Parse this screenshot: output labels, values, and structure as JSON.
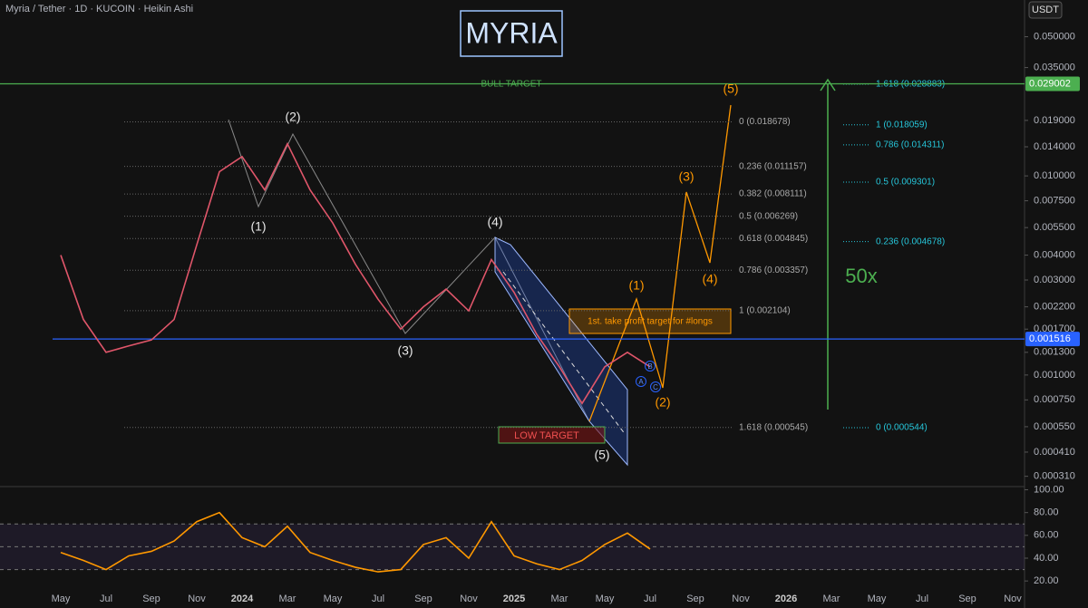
{
  "chart_data": [
    {
      "type": "line",
      "log_scale": true,
      "title": "MYRIA",
      "subtitle": "Myria / Tether · 1D · KUCOIN · Heikin Ashi",
      "currency": "USDT",
      "categories": [
        "May",
        null,
        "Jul",
        null,
        "Sep",
        null,
        "Nov",
        null,
        "2024",
        null,
        "Mar",
        null,
        "May",
        null,
        "Jul",
        null,
        "Sep",
        null,
        "Nov",
        null,
        "2025",
        null,
        "Mar",
        null,
        "May",
        null,
        "Jul",
        null,
        "Sep",
        null,
        "Nov",
        null,
        "2026",
        null,
        "Mar",
        null,
        "May",
        null,
        "Jul",
        null,
        "Sep",
        null,
        "Nov"
      ],
      "values": [
        0.004,
        0.0019,
        0.0013,
        0.0014,
        0.0015,
        0.0019,
        0.0045,
        0.0105,
        0.0125,
        0.0085,
        0.0145,
        0.0085,
        0.0058,
        0.0036,
        0.0024,
        0.0017,
        0.0022,
        0.0027,
        0.0021,
        0.0038,
        0.0026,
        0.0016,
        0.0011,
        0.00072,
        0.0011,
        0.0013,
        0.0011,
        null,
        null,
        null,
        null,
        null,
        null,
        null,
        null,
        null,
        null,
        null,
        null,
        null,
        null,
        null,
        null
      ],
      "color": "#e0566a",
      "ylim": [
        0.00029,
        0.062
      ],
      "yticks": [
        {
          "value": 0.05,
          "label": "0.050000"
        },
        {
          "value": 0.035,
          "label": "0.035000"
        },
        {
          "value": 0.019,
          "label": "0.019000"
        },
        {
          "value": 0.014,
          "label": "0.014000"
        },
        {
          "value": 0.01,
          "label": "0.010000"
        },
        {
          "value": 0.0075,
          "label": "0.007500"
        },
        {
          "value": 0.0055,
          "label": "0.005500"
        },
        {
          "value": 0.004,
          "label": "0.004000"
        },
        {
          "value": 0.003,
          "label": "0.003000"
        },
        {
          "value": 0.0022,
          "label": "0.002200"
        },
        {
          "value": 0.0017,
          "label": "0.001700"
        },
        {
          "value": 0.0013,
          "label": "0.001300"
        },
        {
          "value": 0.001,
          "label": "0.001000"
        },
        {
          "value": 0.00075,
          "label": "0.000750"
        },
        {
          "value": 0.00055,
          "label": "0.000550"
        },
        {
          "value": 0.00041,
          "label": "0.000410"
        },
        {
          "value": 0.00031,
          "label": "0.000310"
        }
      ],
      "hlines": [
        {
          "value": 0.029002,
          "color": "#4caf50"
        },
        {
          "value": 0.001516,
          "color": "#2962ff"
        }
      ],
      "fib_left": [
        {
          "value": 0.018678,
          "label": "0 (0.018678)"
        },
        {
          "value": 0.011157,
          "label": "0.236 (0.011157)"
        },
        {
          "value": 0.008111,
          "label": "0.382 (0.008111)"
        },
        {
          "value": 0.006269,
          "label": "0.5 (0.006269)"
        },
        {
          "value": 0.004845,
          "label": "0.618 (0.004845)"
        },
        {
          "value": 0.003357,
          "label": "0.786 (0.003357)"
        },
        {
          "value": 0.002104,
          "label": "1 (0.002104)"
        },
        {
          "value": 0.000545,
          "label": "1.618 (0.000545)"
        }
      ],
      "fib_right": [
        {
          "value": 0.028883,
          "label": "1.618 (0.028883)"
        },
        {
          "value": 0.018059,
          "label": "1 (0.018059)"
        },
        {
          "value": 0.014311,
          "label": "0.786 (0.014311)"
        },
        {
          "value": 0.009301,
          "label": "0.5 (0.009301)"
        },
        {
          "value": 0.004678,
          "label": "0.236 (0.004678)"
        },
        {
          "value": 0.000544,
          "label": "0 (0.000544)"
        }
      ],
      "annotations": {
        "bull_target": "BULL TARGET",
        "low_target": "LOW TARGET",
        "take_profit": "1st. take profit target for #longs",
        "multiplier": "50x"
      },
      "waves_white": [
        "(1)",
        "(2)",
        "(3)",
        "(4)",
        "(5)"
      ],
      "waves_orange": [
        "(1)",
        "(2)",
        "(3)",
        "(4)",
        "(5)"
      ],
      "abc": [
        "A",
        "B",
        "C"
      ]
    },
    {
      "type": "line",
      "values": [
        45,
        38,
        30,
        42,
        46,
        55,
        72,
        80,
        58,
        50,
        68,
        45,
        38,
        32,
        28,
        30,
        52,
        58,
        40,
        72,
        42,
        35,
        30,
        38,
        52,
        62,
        48,
        null,
        null,
        null,
        null,
        null,
        null,
        null,
        null,
        null,
        null,
        null,
        null,
        null,
        null,
        null,
        null
      ],
      "color": "#ff9800",
      "ylim": [
        9,
        102
      ],
      "yticks": [
        {
          "value": 100,
          "label": "100.00"
        },
        {
          "value": 80,
          "label": "80.00"
        },
        {
          "value": 60,
          "label": "60.00"
        },
        {
          "value": 40,
          "label": "40.00"
        },
        {
          "value": 20,
          "label": "20.00"
        }
      ],
      "levels": [
        30,
        50,
        70
      ]
    }
  ]
}
